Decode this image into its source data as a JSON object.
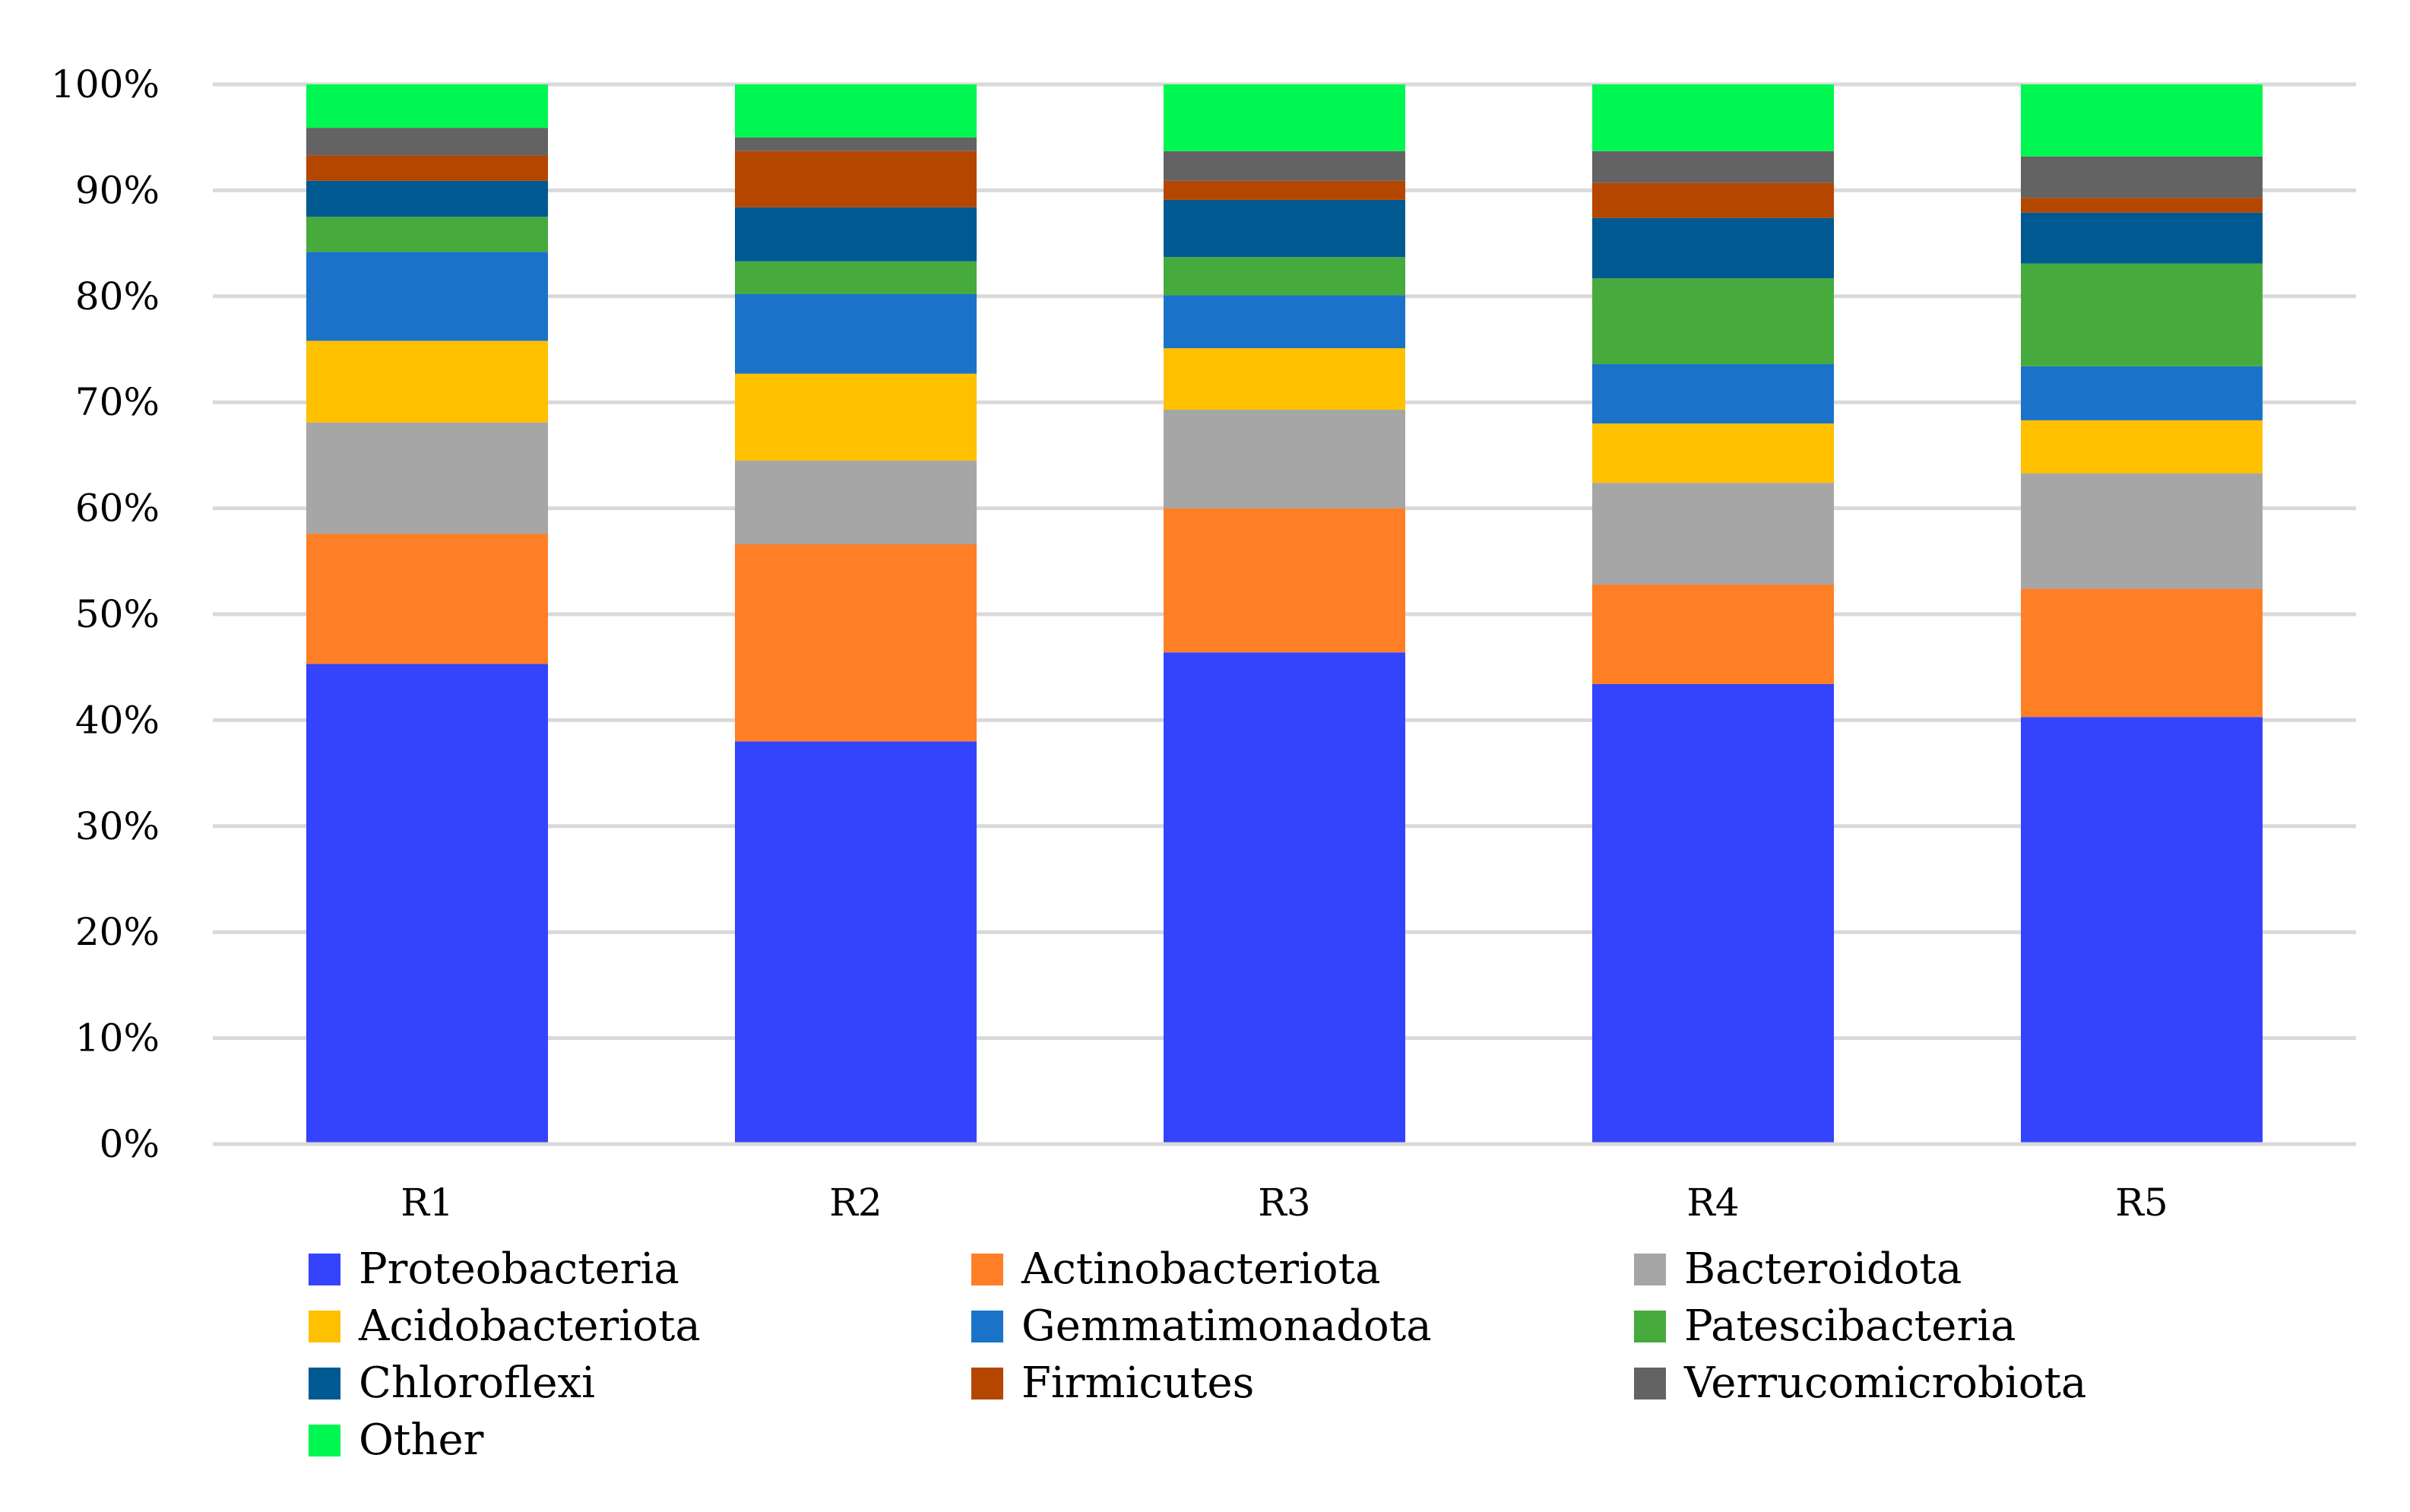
{
  "chart_data": {
    "type": "bar",
    "stacked": true,
    "percent_stacked": true,
    "title": "",
    "xlabel": "",
    "ylabel": "",
    "categories": [
      "R1",
      "R2",
      "R3",
      "R4",
      "R5"
    ],
    "ylim": [
      0,
      100
    ],
    "yticks": [
      "0%",
      "10%",
      "20%",
      "30%",
      "40%",
      "50%",
      "60%",
      "70%",
      "80%",
      "90%",
      "100%"
    ],
    "grid": true,
    "legend_position": "bottom",
    "series": [
      {
        "name": "Proteobacteria",
        "color": "#3443FC",
        "values": [
          45.3,
          38.0,
          46.4,
          43.4,
          40.3
        ]
      },
      {
        "name": "Actinobacteriota",
        "color": "#FF7F27",
        "values": [
          12.3,
          18.6,
          13.6,
          9.4,
          12.1
        ]
      },
      {
        "name": "Bacteroidota",
        "color": "#A6A6A6",
        "values": [
          10.5,
          7.9,
          9.3,
          9.6,
          10.9
        ]
      },
      {
        "name": "Acidobacteriota",
        "color": "#FFC000",
        "values": [
          7.7,
          8.2,
          5.8,
          5.6,
          5.0
        ]
      },
      {
        "name": "Gemmatimonadota",
        "color": "#1A73C8",
        "values": [
          8.4,
          7.5,
          5.0,
          5.6,
          5.1
        ]
      },
      {
        "name": "Patescibacteria",
        "color": "#46AB3C",
        "values": [
          3.3,
          3.1,
          3.6,
          8.1,
          9.7
        ]
      },
      {
        "name": "Chloroflexi",
        "color": "#005A91",
        "values": [
          3.4,
          5.1,
          5.4,
          5.7,
          4.8
        ]
      },
      {
        "name": "Firmicutes",
        "color": "#B54600",
        "values": [
          2.4,
          5.3,
          1.8,
          3.3,
          1.4
        ]
      },
      {
        "name": "Verrucomicrobiota",
        "color": "#636363",
        "values": [
          2.6,
          1.3,
          2.8,
          3.0,
          3.9
        ]
      },
      {
        "name": "Other",
        "color": "#00F751",
        "values": [
          4.1,
          5.0,
          6.3,
          6.3,
          6.8
        ]
      }
    ]
  }
}
